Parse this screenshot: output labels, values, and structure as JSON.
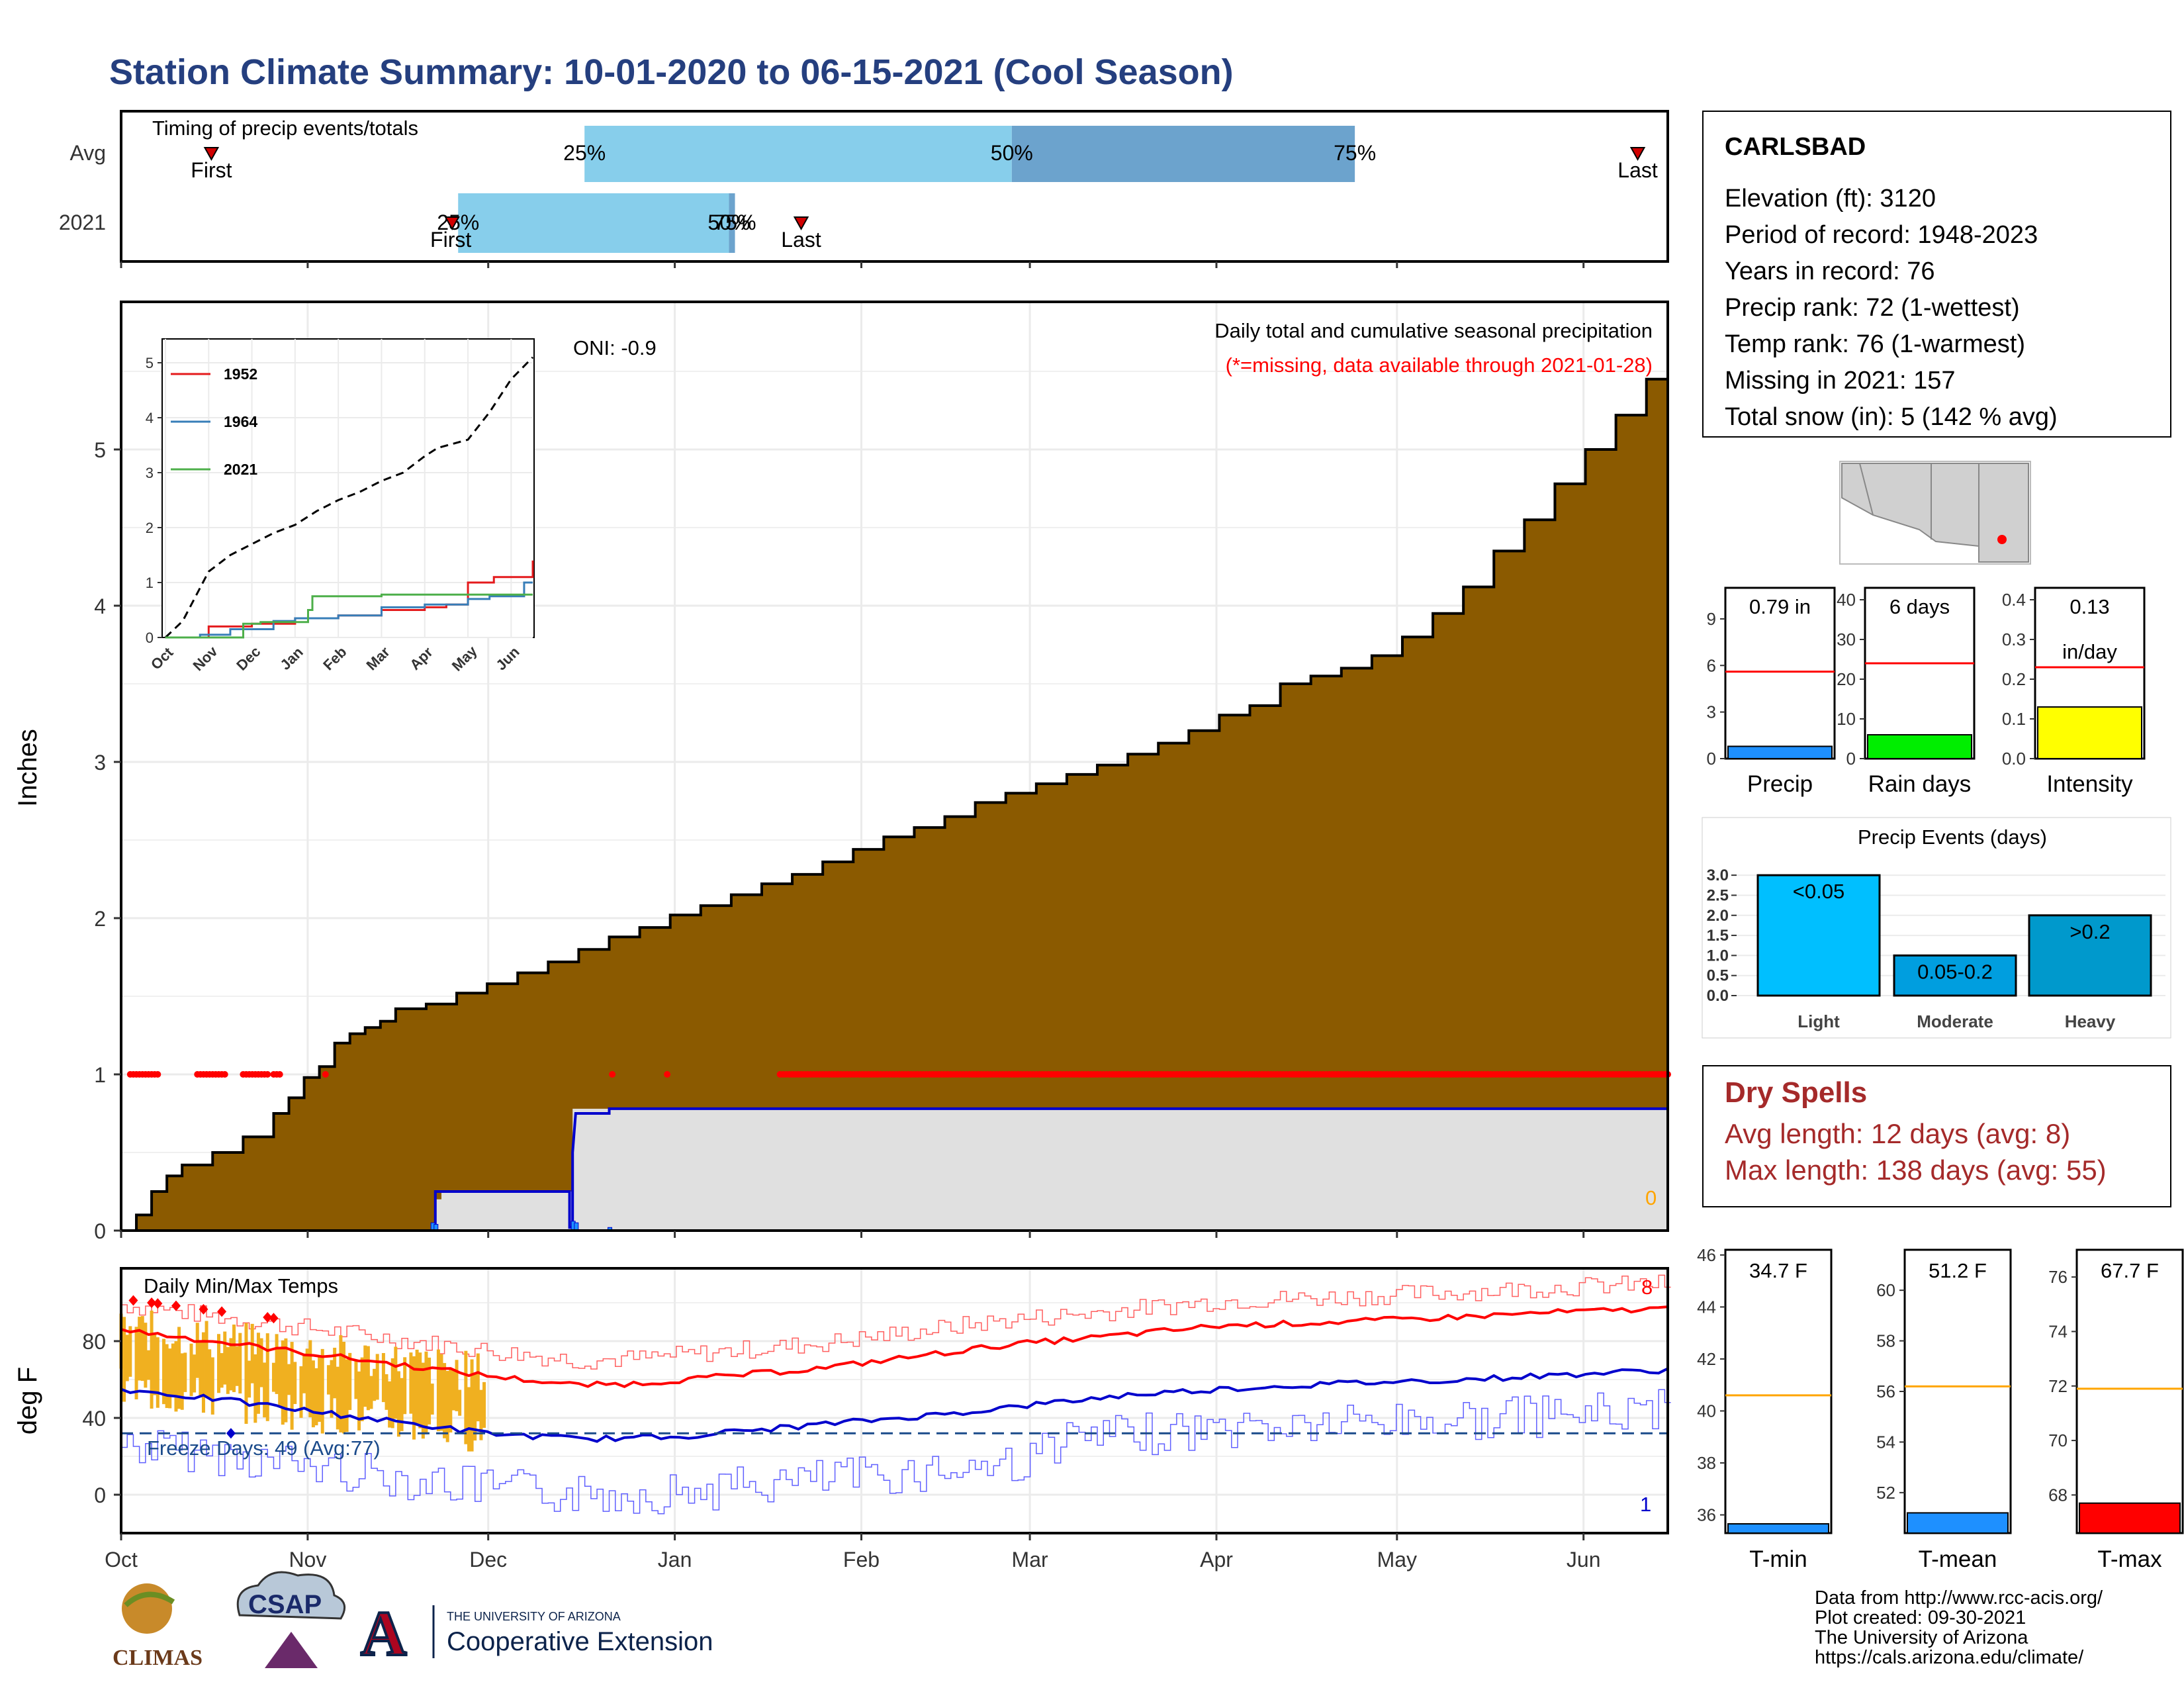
{
  "title": "Station Climate Summary: 10-01-2020 to 06-15-2021 (Cool Season)",
  "colors": {
    "title": "#253f7f",
    "cum_fill": "#8b5a00",
    "light_blue": "#87ceeb",
    "steel_blue": "#6ca3cd",
    "red": "#ff0000",
    "blue": "#0000cc",
    "gold": "#f0b020",
    "grey_fill": "#e0e0e0",
    "spell_red": "#a52a2a"
  },
  "timing": {
    "title": "Timing of precip events/totals",
    "rows": [
      "Avg",
      "2021"
    ],
    "avg": {
      "first": "First",
      "last": "Last",
      "q25": "25%",
      "q50": "50%",
      "q75": "75%"
    },
    "y2021": {
      "first": "First",
      "last": "Last",
      "q25": "25%",
      "q50": "50%",
      "q75": "75%"
    }
  },
  "station": {
    "name": "CARLSBAD",
    "lines": [
      "Elevation (ft): 3120",
      "Period of record: 1948-2023",
      "Years in record: 76",
      "Precip rank: 72 (1-wettest)",
      "Temp rank: 76 (1-warmest)",
      "Missing in 2021: 157",
      "Total snow (in): 5 (142 % avg)"
    ]
  },
  "precip_panel": {
    "ylabel": "Inches",
    "oni": "ONI: -0.9",
    "subtitle": "Daily total and cumulative seasonal precipitation",
    "missing_note": "(*=missing, data available through 2021-01-28)",
    "zero_label": "0",
    "yticks": [
      "0",
      "1",
      "2",
      "3",
      "4",
      "5"
    ],
    "months": [
      "Oct",
      "Nov",
      "Dec",
      "Jan",
      "Feb",
      "Mar",
      "Apr",
      "May",
      "Jun"
    ]
  },
  "inset": {
    "legend": [
      "1952",
      "1964",
      "2021"
    ],
    "yticks": [
      "0",
      "1",
      "2",
      "3",
      "4",
      "5"
    ],
    "months": [
      "Oct",
      "Nov",
      "Dec",
      "Jan",
      "Feb",
      "Mar",
      "Apr",
      "May",
      "Jun"
    ]
  },
  "mini_bars": [
    {
      "label": "Precip",
      "value_text": "0.79 in",
      "yticks": [
        "0",
        "3",
        "6",
        "9"
      ]
    },
    {
      "label": "Rain days",
      "value_text": "6 days",
      "yticks": [
        "0",
        "10",
        "20",
        "30",
        "40"
      ]
    },
    {
      "label": "Intensity",
      "value_text": "0.13",
      "value_unit": "in/day",
      "yticks": [
        "0.0",
        "0.1",
        "0.2",
        "0.3",
        "0.4"
      ]
    }
  ],
  "events": {
    "title": "Precip Events (days)",
    "yticks": [
      "0.0",
      "0.5",
      "1.0",
      "1.5",
      "2.0",
      "2.5",
      "3.0"
    ],
    "bars": [
      {
        "cat": "Light",
        "label": "<0.05"
      },
      {
        "cat": "Moderate",
        "label": "0.05-0.2"
      },
      {
        "cat": "Heavy",
        "label": ">0.2"
      }
    ]
  },
  "dry_spells": {
    "title": "Dry Spells",
    "avg": "Avg length: 12 days (avg: 8)",
    "max": "Max length: 138 days (avg: 55)"
  },
  "temp_panel": {
    "title": "Daily Min/Max Temps",
    "ylabel": "deg F",
    "freeze": "Freeze Days: 49 (Avg:77)",
    "hot_count": "8",
    "cold_count": "1",
    "yticks": [
      "0",
      "40",
      "80"
    ],
    "months": [
      "Oct",
      "Nov",
      "Dec",
      "Jan",
      "Feb",
      "Mar",
      "Apr",
      "May",
      "Jun"
    ]
  },
  "temp_bars": [
    {
      "label": "T-min",
      "value_text": "34.7 F",
      "yticks": [
        "36",
        "38",
        "40",
        "42",
        "44",
        "46"
      ]
    },
    {
      "label": "T-mean",
      "value_text": "51.2 F",
      "yticks": [
        "52",
        "54",
        "56",
        "58",
        "60"
      ]
    },
    {
      "label": "T-max",
      "value_text": "67.7 F",
      "yticks": [
        "68",
        "70",
        "72",
        "74",
        "76"
      ]
    }
  ],
  "footer": {
    "logos": [
      "CLIMAS",
      "CSAP",
      "THE UNIVERSITY OF ARIZONA",
      "Cooperative Extension"
    ],
    "lines": [
      "Data from http://www.rcc-acis.org/",
      "Plot created: 09-30-2021",
      "The University of Arizona",
      "https://cals.arizona.edu/climate/"
    ]
  },
  "chart_data": [
    {
      "type": "bar",
      "name": "timing",
      "categories": [
        "Avg",
        "2021"
      ],
      "avg": {
        "first": "2020-10-16",
        "q25": "2020-12-17",
        "q50": "2021-02-26",
        "q75": "2021-04-24",
        "last": "2021-06-10"
      },
      "y2021": {
        "first": "2020-11-25",
        "q25": "2020-11-26",
        "q50": "2021-01-10",
        "q75": "2021-01-11",
        "last": "2021-01-22"
      }
    },
    {
      "type": "area",
      "name": "cumulative precipitation",
      "ylim": [
        0,
        5.9
      ],
      "avg_cumulative": [
        [
          0,
          0.0
        ],
        [
          5,
          0.1
        ],
        [
          10,
          0.25
        ],
        [
          15,
          0.35
        ],
        [
          20,
          0.42
        ],
        [
          30,
          0.5
        ],
        [
          40,
          0.6
        ],
        [
          50,
          0.75
        ],
        [
          55,
          0.85
        ],
        [
          60,
          0.98
        ],
        [
          65,
          1.05
        ],
        [
          70,
          1.2
        ],
        [
          75,
          1.26
        ],
        [
          80,
          1.3
        ],
        [
          85,
          1.34
        ],
        [
          90,
          1.42
        ],
        [
          100,
          1.45
        ],
        [
          110,
          1.52
        ],
        [
          120,
          1.58
        ],
        [
          130,
          1.65
        ],
        [
          140,
          1.72
        ],
        [
          150,
          1.8
        ],
        [
          160,
          1.88
        ],
        [
          170,
          1.94
        ],
        [
          180,
          2.02
        ],
        [
          190,
          2.08
        ],
        [
          200,
          2.15
        ],
        [
          210,
          2.22
        ],
        [
          220,
          2.28
        ],
        [
          230,
          2.36
        ],
        [
          240,
          2.44
        ],
        [
          250,
          2.52
        ],
        [
          260,
          2.58
        ],
        [
          270,
          2.65
        ],
        [
          280,
          2.74
        ],
        [
          290,
          2.8
        ],
        [
          300,
          2.86
        ],
        [
          310,
          2.92
        ],
        [
          320,
          2.98
        ],
        [
          330,
          3.05
        ],
        [
          340,
          3.12
        ],
        [
          350,
          3.2
        ],
        [
          360,
          3.3
        ],
        [
          370,
          3.36
        ],
        [
          380,
          3.5
        ],
        [
          390,
          3.55
        ],
        [
          400,
          3.6
        ],
        [
          410,
          3.68
        ],
        [
          420,
          3.8
        ],
        [
          430,
          3.95
        ],
        [
          440,
          4.12
        ],
        [
          450,
          4.35
        ],
        [
          460,
          4.55
        ],
        [
          470,
          4.78
        ],
        [
          480,
          5.0
        ],
        [
          490,
          5.22
        ],
        [
          500,
          5.45
        ],
        [
          507,
          5.52
        ]
      ],
      "y2021_cumulative": [
        [
          0,
          0
        ],
        [
          102,
          0
        ],
        [
          103,
          0.2
        ],
        [
          105,
          0.25
        ],
        [
          147,
          0.25
        ],
        [
          148,
          0.5
        ],
        [
          149,
          0.75
        ],
        [
          160,
          0.78
        ],
        [
          195,
          0.78
        ]
      ],
      "missing_marker_y": 1.0
    },
    {
      "type": "line",
      "name": "daily temperatures",
      "ylim": [
        -20,
        110
      ],
      "freeze_line": 32,
      "avg_max": [
        [
          0,
          86
        ],
        [
          30,
          80
        ],
        [
          60,
          74
        ],
        [
          90,
          68
        ],
        [
          120,
          62
        ],
        [
          150,
          57
        ],
        [
          170,
          58
        ],
        [
          200,
          62
        ],
        [
          230,
          66
        ],
        [
          260,
          72
        ],
        [
          290,
          78
        ],
        [
          320,
          82
        ],
        [
          360,
          88
        ],
        [
          400,
          90
        ],
        [
          430,
          92
        ],
        [
          470,
          95
        ],
        [
          507,
          97
        ]
      ],
      "avg_min": [
        [
          0,
          55
        ],
        [
          30,
          50
        ],
        [
          60,
          44
        ],
        [
          90,
          38
        ],
        [
          120,
          32
        ],
        [
          150,
          29
        ],
        [
          180,
          30
        ],
        [
          210,
          34
        ],
        [
          240,
          38
        ],
        [
          270,
          42
        ],
        [
          300,
          47
        ],
        [
          330,
          52
        ],
        [
          360,
          55
        ],
        [
          400,
          58
        ],
        [
          440,
          60
        ],
        [
          480,
          63
        ],
        [
          507,
          65
        ]
      ]
    },
    {
      "type": "bar",
      "name": "summary bars",
      "categories": [
        "Precip",
        "Rain days",
        "Intensity",
        "T-min",
        "T-mean",
        "T-max"
      ],
      "values": [
        0.79,
        6,
        0.13,
        34.7,
        51.2,
        67.7
      ],
      "averages": [
        5.6,
        24,
        0.23,
        40.6,
        56.2,
        71.9
      ]
    },
    {
      "type": "bar",
      "name": "Precip Events (days)",
      "categories": [
        "Light",
        "Moderate",
        "Heavy"
      ],
      "values": [
        3,
        1,
        2
      ],
      "ylim": [
        0,
        3.2
      ]
    }
  ]
}
